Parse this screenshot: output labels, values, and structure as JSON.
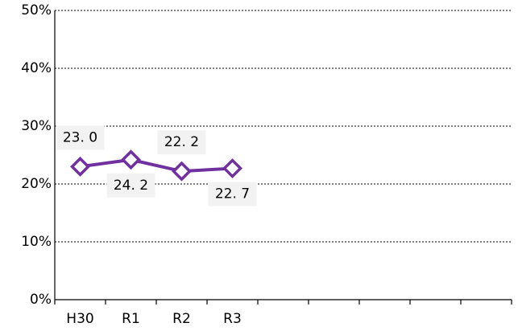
{
  "chart_data": {
    "type": "line",
    "categories": [
      "H30",
      "R1",
      "R2",
      "R3",
      null,
      null,
      null,
      null,
      null
    ],
    "series": [
      {
        "name": null,
        "color": "#7030a0",
        "values": [
          23.0,
          24.2,
          22.2,
          22.7,
          null,
          null,
          null,
          null,
          null
        ],
        "value_labels": [
          "23. 0",
          "24. 2",
          "22. 2",
          "22. 7",
          null,
          null,
          null,
          null,
          null
        ]
      }
    ],
    "ylim": [
      0,
      50
    ],
    "yticks": [
      {
        "value": 0,
        "label": "0%"
      },
      {
        "value": 10,
        "label": "10%"
      },
      {
        "value": 20,
        "label": "20%"
      },
      {
        "value": 30,
        "label": "30%"
      },
      {
        "value": 40,
        "label": "40%"
      },
      {
        "value": 50,
        "label": "50%"
      }
    ],
    "grid": true,
    "label_background": "#f2f2f2"
  }
}
